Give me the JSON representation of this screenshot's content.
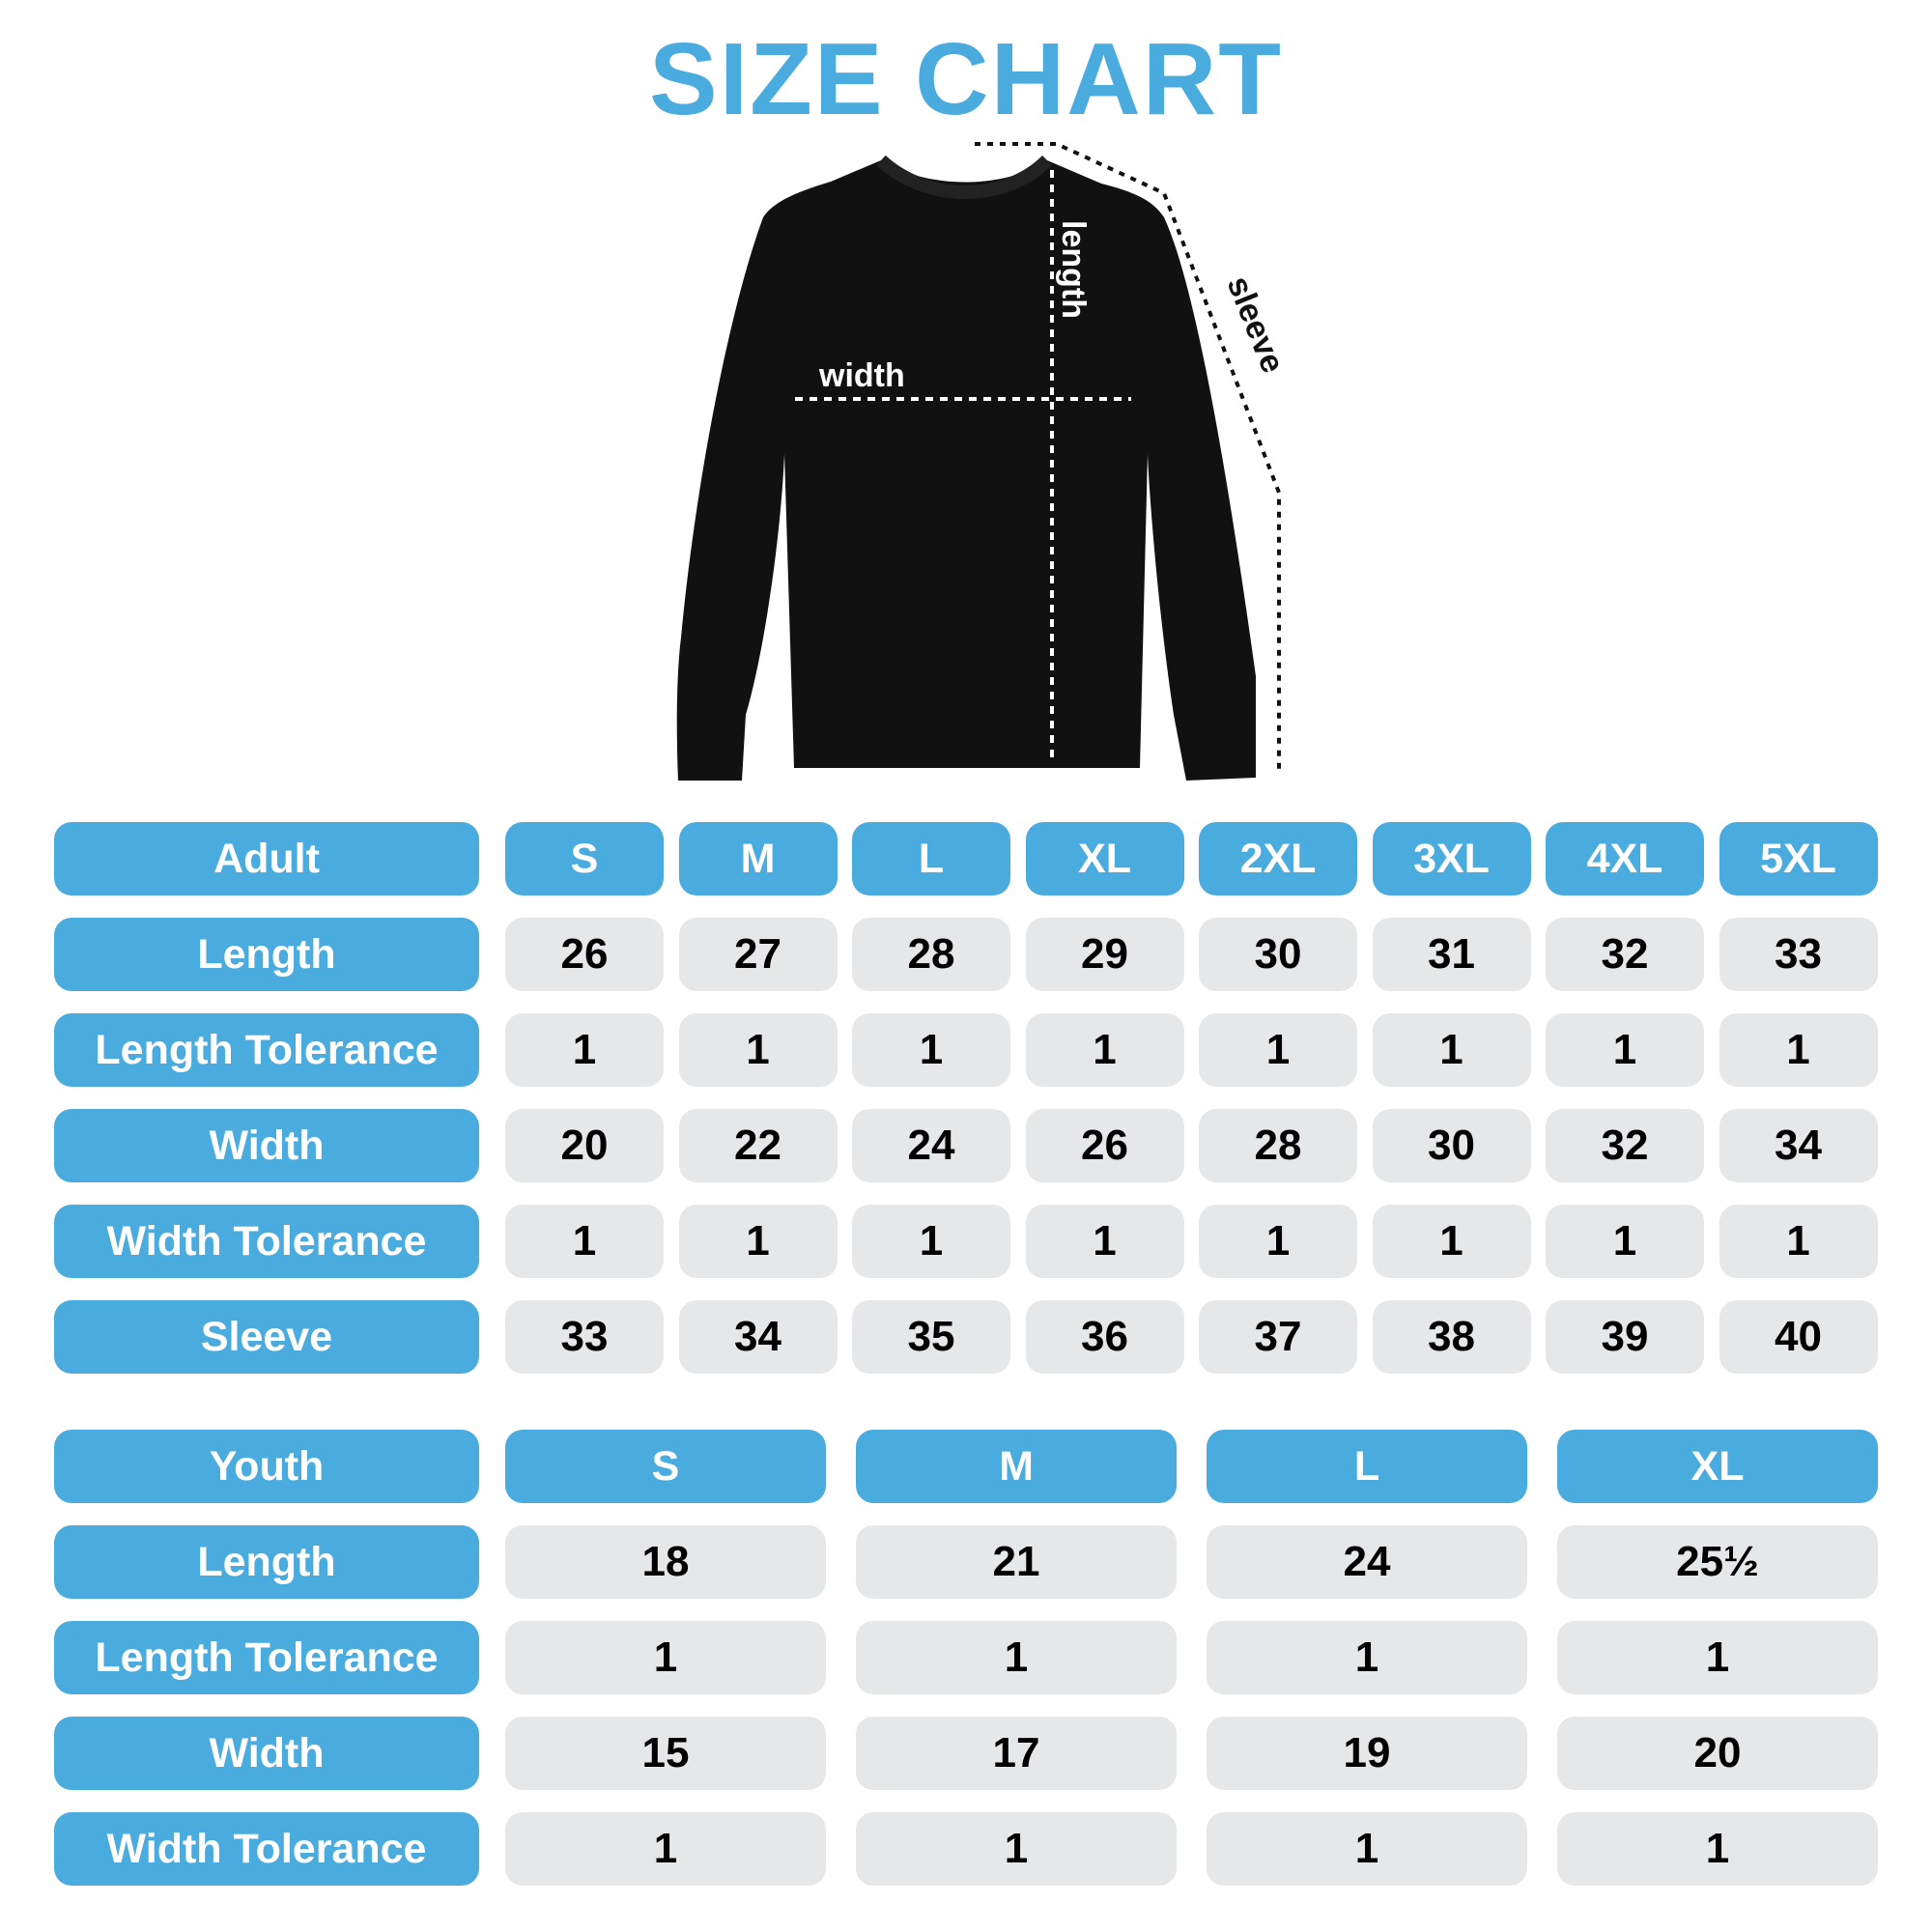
{
  "title": "SIZE CHART",
  "diagram": {
    "width_label": "width",
    "length_label": "length",
    "sleeve_label": "sleeve"
  },
  "colors": {
    "accent": "#4aabde",
    "cell": "#e6e7e9",
    "garment": "#111111"
  },
  "adult": {
    "header": "Adult",
    "sizes": [
      "S",
      "M",
      "L",
      "XL",
      "2XL",
      "3XL",
      "4XL",
      "5XL"
    ],
    "rows": [
      {
        "label": "Length",
        "values": [
          "26",
          "27",
          "28",
          "29",
          "30",
          "31",
          "32",
          "33"
        ]
      },
      {
        "label": "Length Tolerance",
        "values": [
          "1",
          "1",
          "1",
          "1",
          "1",
          "1",
          "1",
          "1"
        ]
      },
      {
        "label": "Width",
        "values": [
          "20",
          "22",
          "24",
          "26",
          "28",
          "30",
          "32",
          "34"
        ]
      },
      {
        "label": "Width Tolerance",
        "values": [
          "1",
          "1",
          "1",
          "1",
          "1",
          "1",
          "1",
          "1"
        ]
      },
      {
        "label": "Sleeve",
        "values": [
          "33",
          "34",
          "35",
          "36",
          "37",
          "38",
          "39",
          "40"
        ]
      }
    ]
  },
  "youth": {
    "header": "Youth",
    "sizes": [
      "S",
      "M",
      "L",
      "XL"
    ],
    "rows": [
      {
        "label": "Length",
        "values": [
          "18",
          "21",
          "24",
          "25½"
        ]
      },
      {
        "label": "Length Tolerance",
        "values": [
          "1",
          "1",
          "1",
          "1"
        ]
      },
      {
        "label": "Width",
        "values": [
          "15",
          "17",
          "19",
          "20"
        ]
      },
      {
        "label": "Width Tolerance",
        "values": [
          "1",
          "1",
          "1",
          "1"
        ]
      }
    ]
  }
}
